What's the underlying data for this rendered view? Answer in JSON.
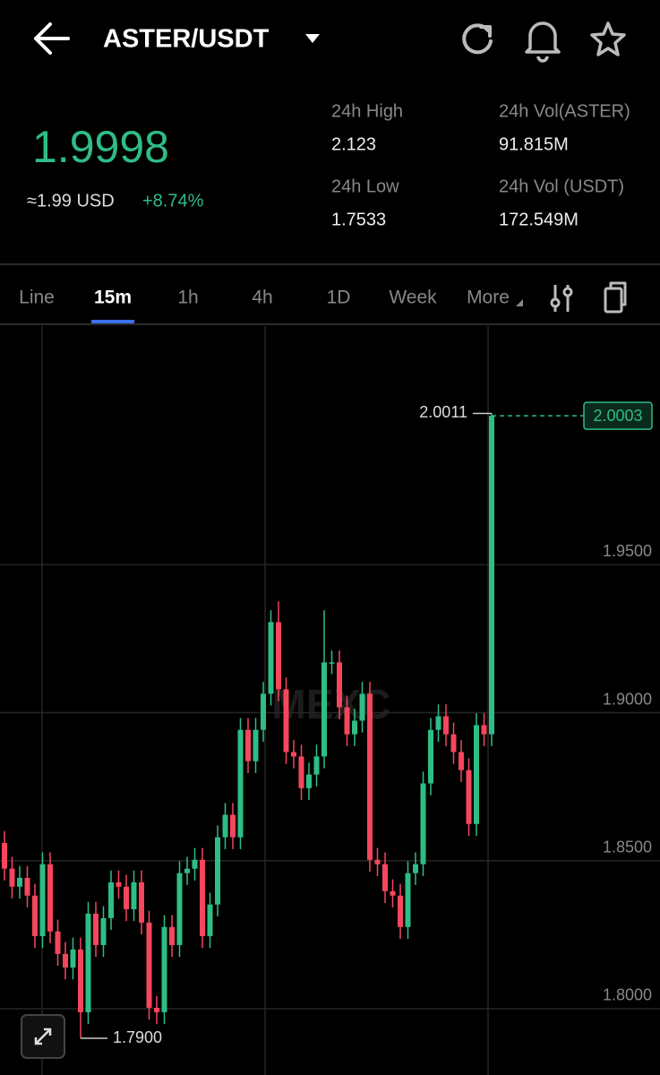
{
  "header": {
    "pair": "ASTER/USDT"
  },
  "price": {
    "last": "1.9998",
    "usd": "≈1.99 USD",
    "change": "+8.74%"
  },
  "stats": [
    {
      "label": "24h High",
      "value": "2.123"
    },
    {
      "label": "24h Vol(ASTER)",
      "value": "91.815M"
    },
    {
      "label": "24h Low",
      "value": "1.7533"
    },
    {
      "label": "24h Vol (USDT)",
      "value": "172.549M"
    }
  ],
  "tabs": {
    "items": [
      "Line",
      "15m",
      "1h",
      "4h",
      "1D",
      "Week",
      "More"
    ],
    "active": "15m"
  },
  "chart_data": {
    "type": "candlestick",
    "watermark": "MEXC",
    "up_color": "#2ebd85",
    "down_color": "#f6465d",
    "ylim": [
      1.7776,
      2.0306
    ],
    "yticks": [
      {
        "value": 1.8,
        "label": "1.8000"
      },
      {
        "value": 1.85,
        "label": "1.8500"
      },
      {
        "value": 1.9,
        "label": "1.9000"
      },
      {
        "value": 1.95,
        "label": "1.9500"
      }
    ],
    "grid": true,
    "max_label": 2.0011,
    "min_label": {
      "value": 1.79,
      "label": "1.7900"
    },
    "last_price": 2.0003,
    "series": {
      "open": [
        1.856,
        1.8473,
        1.8412,
        1.8442,
        1.8382,
        1.8245,
        1.8488,
        1.8261,
        1.8185,
        1.8139,
        1.82,
        1.7988,
        1.8321,
        1.8215,
        1.8306,
        1.8427,
        1.8412,
        1.8336,
        1.8427,
        1.8291,
        1.8003,
        1.7988,
        1.8276,
        1.8215,
        1.8458,
        1.8473,
        1.8503,
        1.8245,
        1.8352,
        1.8579,
        1.8655,
        1.8579,
        1.8942,
        1.8836,
        1.8942,
        1.9064,
        1.9306,
        1.9079,
        1.8867,
        1.8852,
        1.8745,
        1.8791,
        1.8852,
        1.917,
        1.917,
        1.9018,
        1.8927,
        1.8973,
        1.9064,
        1.8503,
        1.8488,
        1.8397,
        1.8382,
        1.8276,
        1.8458,
        1.8488,
        1.8761,
        1.8942,
        1.8988,
        1.8927,
        1.8867,
        1.8806,
        1.8624,
        1.8958,
        1.8927
      ],
      "high": [
        1.86,
        1.8513,
        1.8482,
        1.8482,
        1.8422,
        1.8528,
        1.8528,
        1.8301,
        1.8225,
        1.824,
        1.824,
        1.8361,
        1.8361,
        1.8346,
        1.8467,
        1.8467,
        1.8452,
        1.8467,
        1.8467,
        1.8331,
        1.8043,
        1.8316,
        1.8316,
        1.8498,
        1.8513,
        1.8543,
        1.8543,
        1.8392,
        1.8619,
        1.8695,
        1.8695,
        1.8982,
        1.8982,
        1.8982,
        1.9104,
        1.9346,
        1.9376,
        1.9119,
        1.8907,
        1.8892,
        1.8831,
        1.8892,
        1.9346,
        1.921,
        1.921,
        1.9058,
        1.9013,
        1.9104,
        1.9104,
        1.8543,
        1.8528,
        1.8437,
        1.8422,
        1.8498,
        1.8528,
        1.8801,
        1.8982,
        1.9028,
        1.9028,
        1.8967,
        1.8907,
        1.8846,
        1.8998,
        1.8998,
        2.0011
      ],
      "low": [
        1.8433,
        1.8372,
        1.8372,
        1.8342,
        1.8205,
        1.8205,
        1.8221,
        1.8145,
        1.8099,
        1.8099,
        1.79,
        1.7948,
        1.8175,
        1.8175,
        1.8266,
        1.8372,
        1.8296,
        1.8296,
        1.8251,
        1.7963,
        1.7948,
        1.7948,
        1.8175,
        1.8175,
        1.8418,
        1.8433,
        1.8205,
        1.8205,
        1.8312,
        1.8539,
        1.8539,
        1.8539,
        1.8796,
        1.8796,
        1.8902,
        1.9024,
        1.9039,
        1.8827,
        1.8812,
        1.8705,
        1.8705,
        1.8751,
        1.8812,
        1.913,
        1.8978,
        1.8887,
        1.8887,
        1.8933,
        1.8463,
        1.8448,
        1.8357,
        1.8342,
        1.8236,
        1.8236,
        1.8418,
        1.8448,
        1.8721,
        1.8902,
        1.8887,
        1.8827,
        1.8766,
        1.8584,
        1.8584,
        1.8887,
        1.8887
      ],
      "close": [
        1.8473,
        1.8412,
        1.8442,
        1.8382,
        1.8245,
        1.8488,
        1.8261,
        1.8185,
        1.8139,
        1.82,
        1.7988,
        1.8321,
        1.8215,
        1.8306,
        1.8427,
        1.8412,
        1.8336,
        1.8427,
        1.8291,
        1.8003,
        1.7988,
        1.8276,
        1.8215,
        1.8458,
        1.8473,
        1.8503,
        1.8245,
        1.8352,
        1.8579,
        1.8655,
        1.8579,
        1.8942,
        1.8836,
        1.8942,
        1.9064,
        1.9306,
        1.9079,
        1.8867,
        1.8852,
        1.8745,
        1.8791,
        1.8852,
        1.917,
        1.917,
        1.9018,
        1.8927,
        1.8973,
        1.9064,
        1.8503,
        1.8488,
        1.8397,
        1.8382,
        1.8276,
        1.8458,
        1.8488,
        1.8761,
        1.8942,
        1.8988,
        1.8927,
        1.8867,
        1.8806,
        1.8624,
        1.8958,
        1.8927,
        2.0003
      ]
    }
  }
}
